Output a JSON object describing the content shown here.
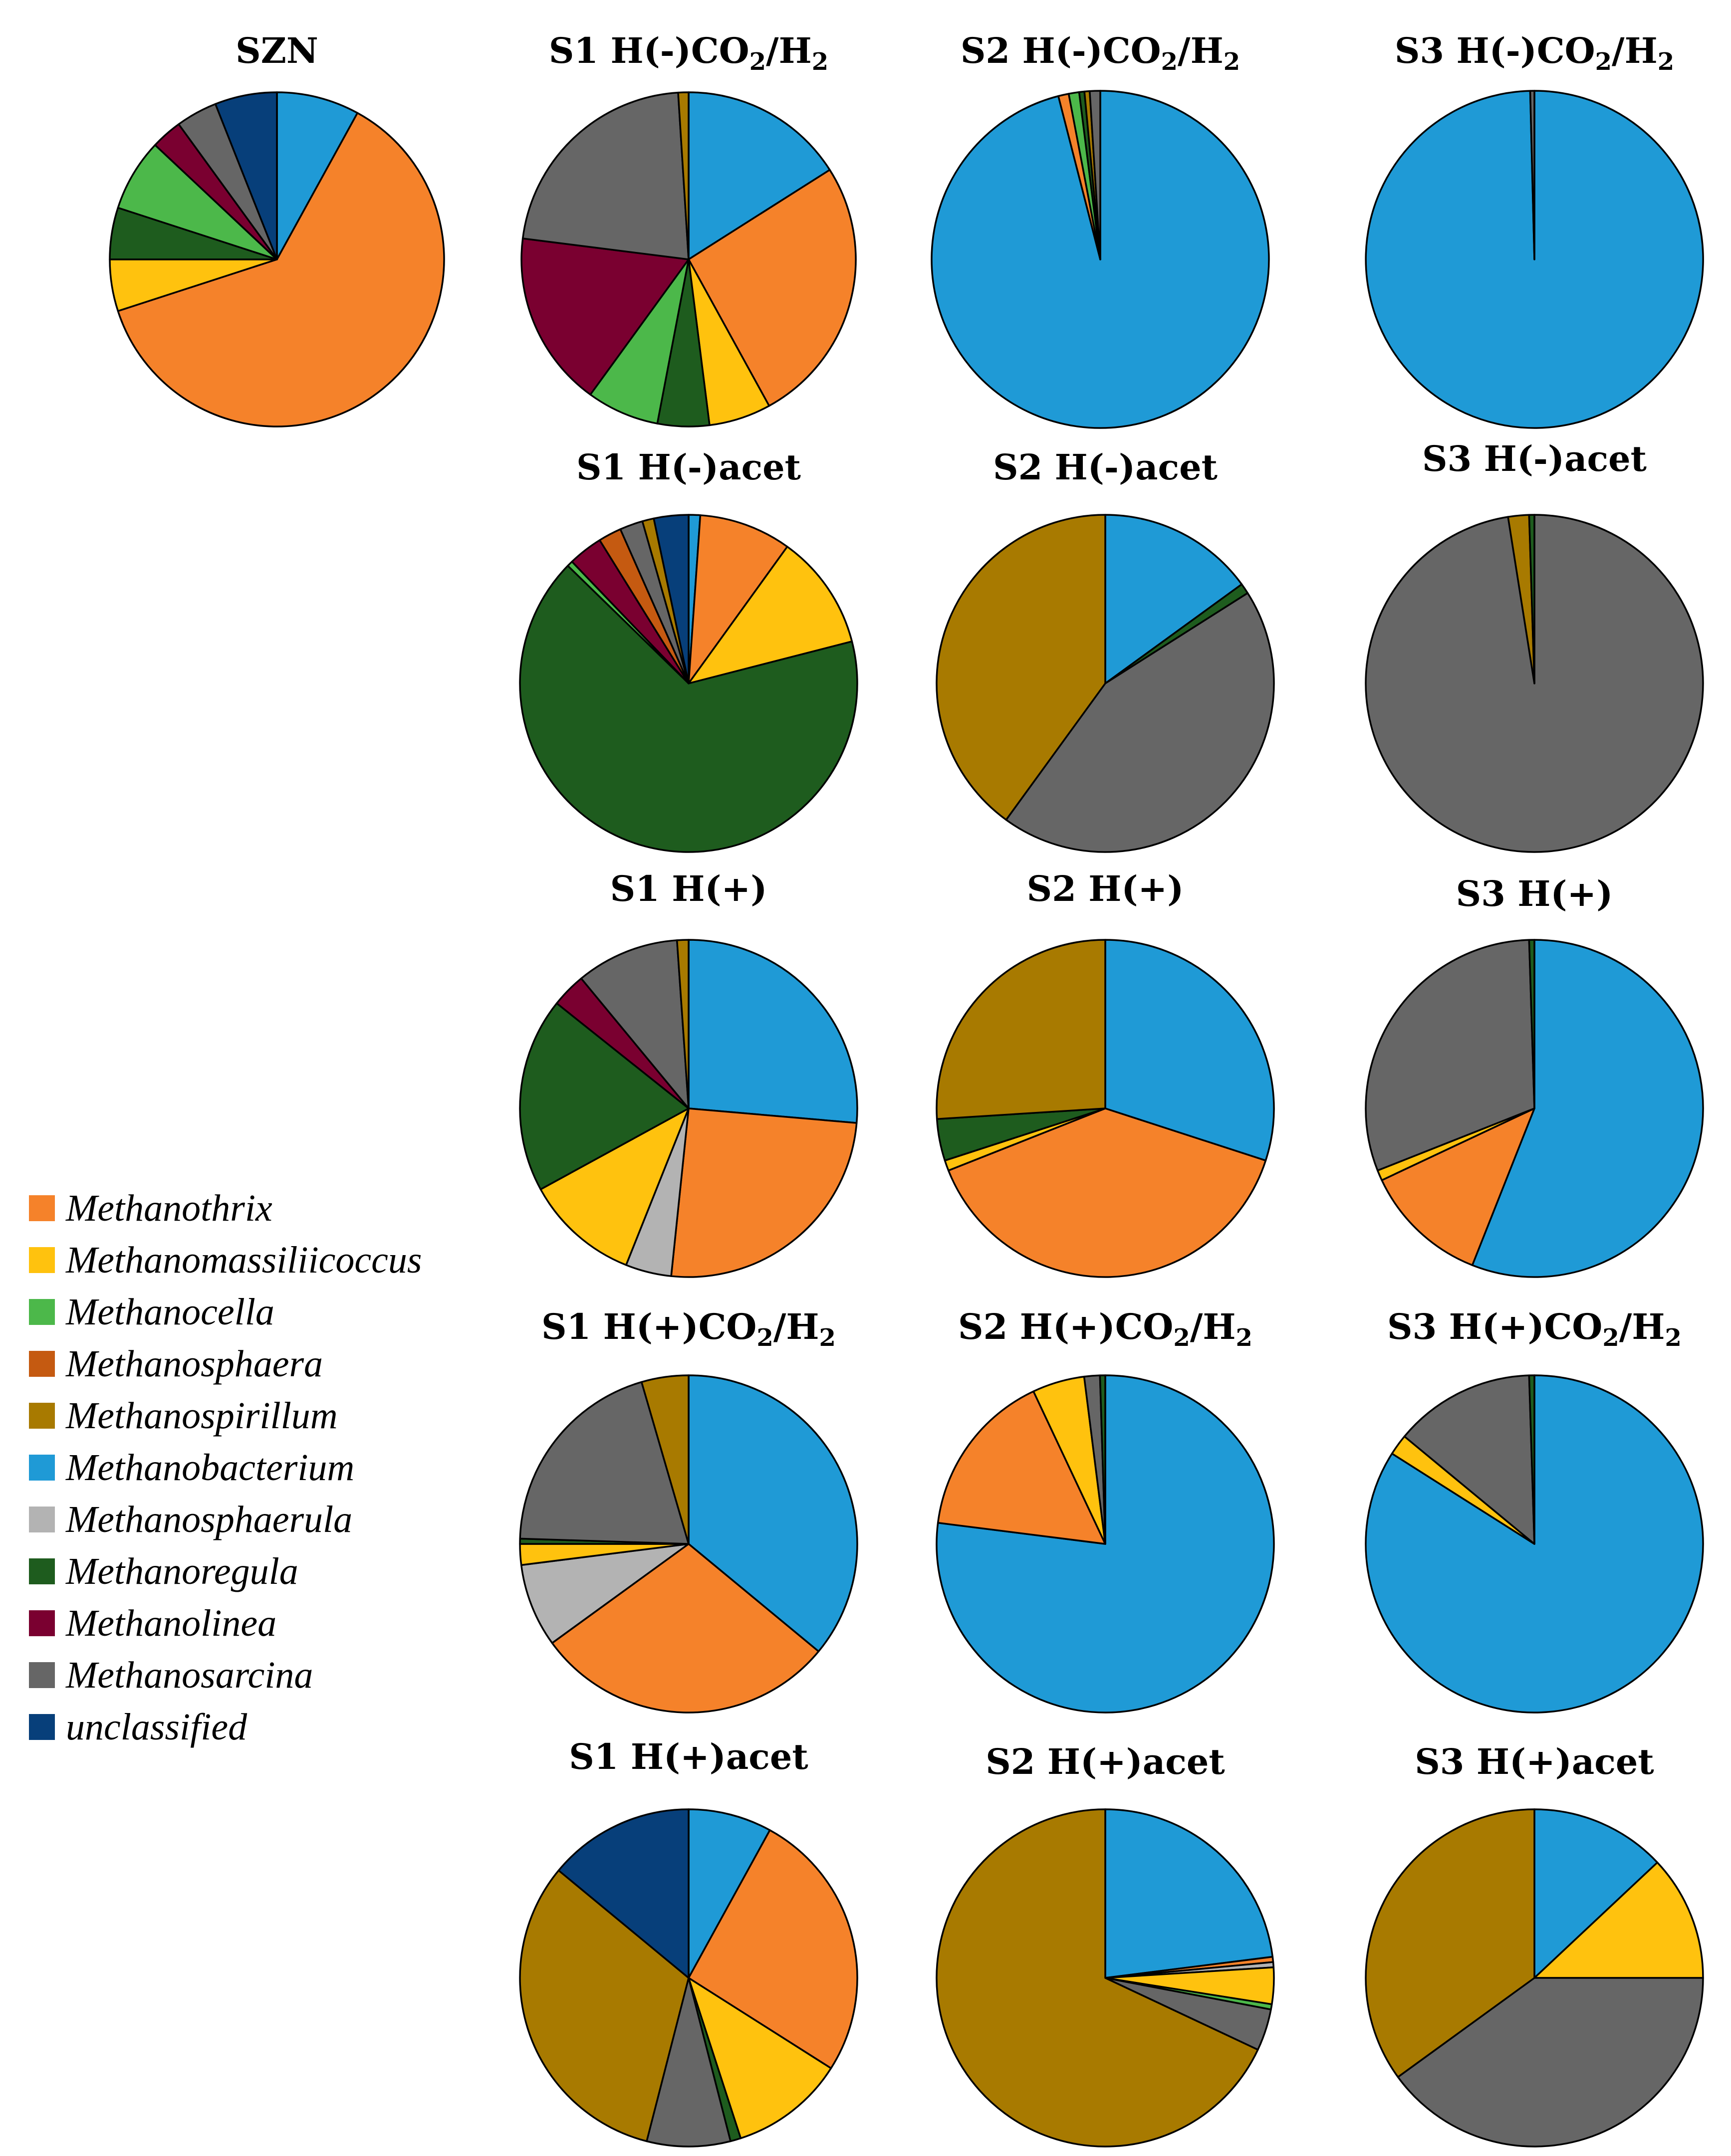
{
  "chart_data": {
    "type": "pie",
    "legend": {
      "position": "left",
      "entries": [
        {
          "key": "Methanothrix",
          "label": "Methanothrix",
          "color": "#F5822A"
        },
        {
          "key": "Methanomassiliicoccus",
          "label": "Methanomassiliicoccus",
          "color": "#FFC20E"
        },
        {
          "key": "Methanocella",
          "label": "Methanocella",
          "color": "#4CB84A"
        },
        {
          "key": "Methanosphaera",
          "label": "Methanosphaera",
          "color": "#C55A11"
        },
        {
          "key": "Methanospirillum",
          "label": "Methanospirillum",
          "color": "#A87A00"
        },
        {
          "key": "Methanobacterium",
          "label": "Methanobacterium",
          "color": "#1F9AD6"
        },
        {
          "key": "Methanosphaerula",
          "label": "Methanosphaerula",
          "color": "#B3B3B3"
        },
        {
          "key": "Methanoregula",
          "label": "Methanoregula",
          "color": "#1E5C1E"
        },
        {
          "key": "Methanolinea",
          "label": "Methanolinea",
          "color": "#7A0030"
        },
        {
          "key": "Methanosarcina",
          "label": "Methanosarcina",
          "color": "#666666"
        },
        {
          "key": "unclassified",
          "label": "unclassified",
          "color": "#073F7A"
        }
      ]
    },
    "charts": [
      {
        "id": "SZN",
        "title": {
          "main": "SZN"
        },
        "slices": [
          [
            "Methanobacterium",
            8
          ],
          [
            "Methanothrix",
            62
          ],
          [
            "Methanomassiliicoccus",
            5
          ],
          [
            "Methanoregula",
            5
          ],
          [
            "Methanocella",
            7
          ],
          [
            "Methanolinea",
            3
          ],
          [
            "Methanosarcina",
            4
          ],
          [
            "unclassified",
            6
          ]
        ]
      },
      {
        "id": "S1_Hm_CO2H2",
        "title": {
          "main": "S1 H(-)CO",
          "sub1": "2",
          "mid": "/H",
          "sub2": "2"
        },
        "slices": [
          [
            "Methanobacterium",
            16
          ],
          [
            "Methanothrix",
            26
          ],
          [
            "Methanomassiliicoccus",
            6
          ],
          [
            "Methanoregula",
            5
          ],
          [
            "Methanocella",
            7
          ],
          [
            "Methanolinea",
            17
          ],
          [
            "Methanosarcina",
            22
          ],
          [
            "Methanospirillum",
            1
          ]
        ]
      },
      {
        "id": "S2_Hm_CO2H2",
        "title": {
          "main": "S2 H(-)CO",
          "sub1": "2",
          "mid": "/H",
          "sub2": "2"
        },
        "slices": [
          [
            "Methanobacterium",
            96
          ],
          [
            "Methanothrix",
            1
          ],
          [
            "Methanocella",
            1
          ],
          [
            "Methanoregula",
            0.5
          ],
          [
            "Methanospirillum",
            0.5
          ],
          [
            "Methanosarcina",
            1
          ]
        ]
      },
      {
        "id": "S3_Hm_CO2H2",
        "title": {
          "main": "S3 H(-)CO",
          "sub1": "2",
          "mid": "/H",
          "sub2": "2"
        },
        "slices": [
          [
            "Methanobacterium",
            99.6
          ],
          [
            "Methanosarcina",
            0.4
          ]
        ]
      },
      {
        "id": "S1_Hm_acet",
        "title": {
          "main": "S1 H(-)acet"
        },
        "slices": [
          [
            "Methanobacterium",
            1
          ],
          [
            "Methanothrix",
            8
          ],
          [
            "Methanomassiliicoccus",
            10
          ],
          [
            "Methanoregula",
            60
          ],
          [
            "Methanocella",
            0.5
          ],
          [
            "Methanolinea",
            3
          ],
          [
            "Methanosphaera",
            2
          ],
          [
            "Methanosarcina",
            2
          ],
          [
            "Methanospirillum",
            1
          ],
          [
            "unclassified",
            3
          ]
        ]
      },
      {
        "id": "S2_Hm_acet",
        "title": {
          "main": "S2 H(-)acet"
        },
        "slices": [
          [
            "Methanobacterium",
            15
          ],
          [
            "Methanoregula",
            1
          ],
          [
            "Methanosarcina",
            44
          ],
          [
            "Methanospirillum",
            40
          ]
        ]
      },
      {
        "id": "S3_Hm_acet",
        "title": {
          "main": "S3 H(-)acet"
        },
        "slices": [
          [
            "Methanosarcina",
            97.5
          ],
          [
            "Methanospirillum",
            2
          ],
          [
            "Methanoregula",
            0.5
          ]
        ]
      },
      {
        "id": "S1_Hp",
        "title": {
          "main": "S1 H(+)"
        },
        "slices": [
          [
            "Methanobacterium",
            24
          ],
          [
            "Methanothrix",
            23
          ],
          [
            "Methanosphaerula",
            4
          ],
          [
            "Methanomassiliicoccus",
            10
          ],
          [
            "Methanoregula",
            17
          ],
          [
            "Methanolinea",
            3
          ],
          [
            "Methanosarcina",
            9
          ],
          [
            "Methanospirillum",
            1
          ]
        ]
      },
      {
        "id": "S2_Hp",
        "title": {
          "main": "S2 H(+)"
        },
        "slices": [
          [
            "Methanobacterium",
            30
          ],
          [
            "Methanothrix",
            39
          ],
          [
            "Methanomassiliicoccus",
            1
          ],
          [
            "Methanoregula",
            4
          ],
          [
            "Methanospirillum",
            26
          ]
        ]
      },
      {
        "id": "S3_Hp",
        "title": {
          "main": "S3 H(+)"
        },
        "slices": [
          [
            "Methanobacterium",
            56
          ],
          [
            "Methanothrix",
            12
          ],
          [
            "Methanomassiliicoccus",
            1
          ],
          [
            "Methanosarcina",
            30.5
          ],
          [
            "Methanoregula",
            0.5
          ]
        ]
      },
      {
        "id": "S1_Hp_CO2H2",
        "title": {
          "main": "S1 H(+)CO",
          "sub1": "2",
          "mid": "/H",
          "sub2": "2"
        },
        "slices": [
          [
            "Methanobacterium",
            36
          ],
          [
            "Methanothrix",
            29
          ],
          [
            "Methanosphaerula",
            8
          ],
          [
            "Methanomassiliicoccus",
            2
          ],
          [
            "Methanoregula",
            0.5
          ],
          [
            "Methanosarcina",
            20
          ],
          [
            "Methanospirillum",
            4.5
          ]
        ]
      },
      {
        "id": "S2_Hp_CO2H2",
        "title": {
          "main": "S2 H(+)CO",
          "sub1": "2",
          "mid": "/H",
          "sub2": "2"
        },
        "slices": [
          [
            "Methanobacterium",
            77
          ],
          [
            "Methanothrix",
            16
          ],
          [
            "Methanomassiliicoccus",
            5
          ],
          [
            "Methanosarcina",
            1.5
          ],
          [
            "Methanoregula",
            0.5
          ]
        ]
      },
      {
        "id": "S3_Hp_CO2H2",
        "title": {
          "main": "S3 H(+)CO",
          "sub1": "2",
          "mid": "/H",
          "sub2": "2"
        },
        "slices": [
          [
            "Methanobacterium",
            84
          ],
          [
            "Methanomassiliicoccus",
            2
          ],
          [
            "Methanosarcina",
            13.5
          ],
          [
            "Methanoregula",
            0.5
          ]
        ]
      },
      {
        "id": "S1_Hp_acet",
        "title": {
          "main": "S1 H(+)acet"
        },
        "slices": [
          [
            "Methanobacterium",
            8
          ],
          [
            "Methanothrix",
            26
          ],
          [
            "Methanomassiliicoccus",
            11
          ],
          [
            "Methanoregula",
            1
          ],
          [
            "Methanosarcina",
            8
          ],
          [
            "Methanospirillum",
            32
          ],
          [
            "unclassified",
            14
          ]
        ]
      },
      {
        "id": "S2_Hp_acet",
        "title": {
          "main": "S2 H(+)acet"
        },
        "slices": [
          [
            "Methanobacterium",
            23
          ],
          [
            "Methanothrix",
            0.5
          ],
          [
            "Methanosphaerula",
            0.5
          ],
          [
            "Methanomassiliicoccus",
            3.5
          ],
          [
            "Methanocella",
            0.5
          ],
          [
            "Methanosarcina",
            4
          ],
          [
            "Methanospirillum",
            68
          ]
        ]
      },
      {
        "id": "S3_Hp_acet",
        "title": {
          "main": "S3 H(+)acet"
        },
        "slices": [
          [
            "Methanobacterium",
            13
          ],
          [
            "Methanomassiliicoccus",
            12
          ],
          [
            "Methanosarcina",
            40
          ],
          [
            "Methanospirillum",
            35
          ]
        ]
      }
    ]
  }
}
